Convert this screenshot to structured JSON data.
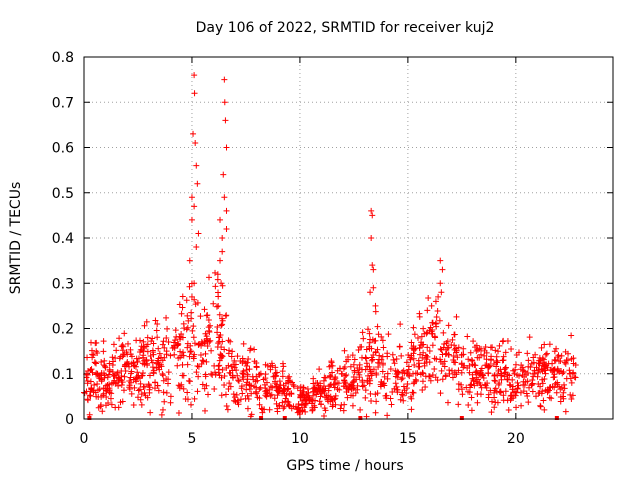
{
  "chart_data": {
    "type": "scatter",
    "title": "Day 106 of 2022, SRMTID for receiver kuj2",
    "xlabel": "GPS time / hours",
    "ylabel": "SRMTID / TECUs",
    "xlim": [
      0,
      24.5
    ],
    "ylim": [
      0,
      0.8
    ],
    "xticks": [
      0,
      5,
      10,
      15,
      20
    ],
    "xtick_labels": [
      "0",
      "5",
      "10",
      "15",
      "20"
    ],
    "yticks": [
      0,
      0.1,
      0.2,
      0.3,
      0.4,
      0.5,
      0.6,
      0.7,
      0.8
    ],
    "ytick_labels": [
      "0",
      "0.1",
      "0.2",
      "0.3",
      "0.4",
      "0.5",
      "0.6",
      "0.7",
      "0.8"
    ],
    "grid": true,
    "marker": "+",
    "color": "#ff0000",
    "baseline_markers_x": [
      0.25,
      8.2,
      9.3,
      12.8,
      17.5,
      21.9
    ],
    "series": [
      {
        "name": "SRMTID",
        "profile": [
          [
            0.0,
            0.08,
            0.05
          ],
          [
            0.5,
            0.09,
            0.06
          ],
          [
            1.0,
            0.08,
            0.05
          ],
          [
            1.5,
            0.1,
            0.06
          ],
          [
            2.0,
            0.11,
            0.06
          ],
          [
            2.5,
            0.1,
            0.06
          ],
          [
            3.0,
            0.12,
            0.07
          ],
          [
            3.5,
            0.13,
            0.08
          ],
          [
            4.0,
            0.13,
            0.08
          ],
          [
            4.5,
            0.14,
            0.09
          ],
          [
            5.0,
            0.18,
            0.12
          ],
          [
            5.5,
            0.12,
            0.07
          ],
          [
            6.0,
            0.2,
            0.12
          ],
          [
            6.5,
            0.16,
            0.1
          ],
          [
            7.0,
            0.1,
            0.05
          ],
          [
            7.5,
            0.09,
            0.05
          ],
          [
            8.0,
            0.08,
            0.05
          ],
          [
            8.5,
            0.08,
            0.05
          ],
          [
            9.0,
            0.07,
            0.04
          ],
          [
            9.5,
            0.06,
            0.04
          ],
          [
            10.0,
            0.04,
            0.03
          ],
          [
            10.5,
            0.05,
            0.03
          ],
          [
            11.0,
            0.06,
            0.04
          ],
          [
            11.5,
            0.07,
            0.04
          ],
          [
            12.0,
            0.08,
            0.05
          ],
          [
            12.5,
            0.09,
            0.05
          ],
          [
            13.0,
            0.11,
            0.06
          ],
          [
            13.5,
            0.13,
            0.08
          ],
          [
            14.0,
            0.1,
            0.06
          ],
          [
            14.5,
            0.11,
            0.06
          ],
          [
            15.0,
            0.13,
            0.07
          ],
          [
            15.5,
            0.14,
            0.08
          ],
          [
            16.0,
            0.15,
            0.09
          ],
          [
            16.5,
            0.14,
            0.08
          ],
          [
            17.0,
            0.12,
            0.07
          ],
          [
            17.5,
            0.11,
            0.06
          ],
          [
            18.0,
            0.1,
            0.06
          ],
          [
            18.5,
            0.11,
            0.06
          ],
          [
            19.0,
            0.1,
            0.06
          ],
          [
            19.5,
            0.1,
            0.06
          ],
          [
            20.0,
            0.09,
            0.05
          ],
          [
            20.5,
            0.1,
            0.06
          ],
          [
            21.0,
            0.09,
            0.05
          ],
          [
            21.5,
            0.09,
            0.05
          ],
          [
            22.0,
            0.09,
            0.05
          ],
          [
            22.5,
            0.1,
            0.06
          ],
          [
            22.8,
            0.08,
            0.05
          ]
        ],
        "spikes": [
          [
            4.9,
            0.35
          ],
          [
            5.0,
            0.49
          ],
          [
            5.05,
            0.63
          ],
          [
            5.1,
            0.76
          ],
          [
            5.12,
            0.72
          ],
          [
            5.15,
            0.61
          ],
          [
            5.2,
            0.56
          ],
          [
            5.25,
            0.52
          ],
          [
            5.1,
            0.47
          ],
          [
            5.0,
            0.44
          ],
          [
            5.3,
            0.41
          ],
          [
            5.2,
            0.38
          ],
          [
            5.1,
            0.3
          ],
          [
            5.0,
            0.27
          ],
          [
            6.3,
            0.44
          ],
          [
            6.4,
            0.4
          ],
          [
            6.45,
            0.54
          ],
          [
            6.5,
            0.75
          ],
          [
            6.52,
            0.7
          ],
          [
            6.55,
            0.66
          ],
          [
            6.6,
            0.6
          ],
          [
            6.5,
            0.49
          ],
          [
            6.6,
            0.46
          ],
          [
            6.4,
            0.37
          ],
          [
            6.3,
            0.35
          ],
          [
            6.2,
            0.32
          ],
          [
            6.35,
            0.3
          ],
          [
            6.6,
            0.42
          ],
          [
            13.3,
            0.46
          ],
          [
            13.35,
            0.45
          ],
          [
            13.3,
            0.4
          ],
          [
            13.35,
            0.34
          ],
          [
            13.4,
            0.33
          ],
          [
            13.4,
            0.29
          ],
          [
            13.5,
            0.25
          ],
          [
            13.25,
            0.28
          ],
          [
            16.5,
            0.35
          ],
          [
            16.6,
            0.33
          ],
          [
            16.5,
            0.3
          ],
          [
            16.55,
            0.28
          ],
          [
            16.4,
            0.27
          ],
          [
            16.3,
            0.26
          ],
          [
            16.1,
            0.25
          ],
          [
            15.9,
            0.24
          ]
        ]
      }
    ]
  }
}
